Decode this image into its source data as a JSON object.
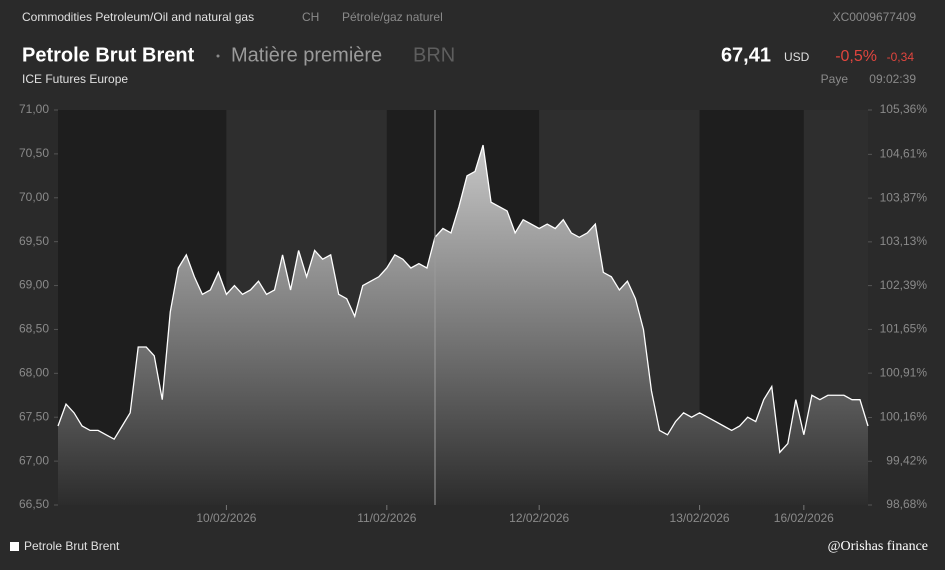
{
  "header": {
    "category": "Commodities Petroleum/Oil and natural gas",
    "country": "CH",
    "sector": "Pétrole/gaz naturel",
    "isin": "XC0009677409",
    "name": "Petrole Brut Brent",
    "kind": "Matière première",
    "symbol": "BRN",
    "price": "67,41",
    "currency": "USD",
    "change_pct": "-0,5%",
    "change_abs": "-0,34",
    "exchange": "ICE Futures Europe",
    "country_label": "Paye",
    "time": "09:02:39"
  },
  "footer": {
    "credit": "@Orishas finance"
  },
  "chart_data": {
    "type": "area",
    "categories": [
      null,
      null,
      null,
      null,
      null,
      null,
      null,
      null,
      null,
      null,
      null,
      null,
      null,
      null,
      null,
      null,
      null,
      null,
      null,
      null,
      null,
      "10/02/2026",
      null,
      null,
      null,
      null,
      null,
      null,
      null,
      null,
      null,
      null,
      null,
      null,
      null,
      null,
      null,
      null,
      null,
      null,
      null,
      "11/02/2026",
      null,
      null,
      null,
      null,
      null,
      null,
      null,
      null,
      null,
      null,
      null,
      null,
      null,
      null,
      null,
      null,
      null,
      null,
      "12/02/2026",
      null,
      null,
      null,
      null,
      null,
      null,
      null,
      null,
      null,
      null,
      null,
      null,
      null,
      null,
      null,
      null,
      null,
      null,
      null,
      "13/02/2026",
      null,
      null,
      null,
      null,
      null,
      null,
      null,
      null,
      null,
      null,
      null,
      null,
      "16/02/2026",
      null,
      null,
      null,
      null,
      null,
      null,
      null,
      null
    ],
    "series": [
      {
        "name": "Petrole Brut Brent",
        "color": "#ffffff",
        "values": [
          67.4,
          67.65,
          67.55,
          67.4,
          67.35,
          67.35,
          67.3,
          67.25,
          67.4,
          67.55,
          68.3,
          68.3,
          68.2,
          67.7,
          68.7,
          69.2,
          69.35,
          69.1,
          68.9,
          68.95,
          69.15,
          68.9,
          69.0,
          68.9,
          68.95,
          69.05,
          68.9,
          68.95,
          69.35,
          68.95,
          69.4,
          69.1,
          69.4,
          69.3,
          69.35,
          68.9,
          68.85,
          68.65,
          69.0,
          69.05,
          69.1,
          69.2,
          69.35,
          69.3,
          69.2,
          69.25,
          69.2,
          69.55,
          69.65,
          69.6,
          69.9,
          70.25,
          70.3,
          70.6,
          69.95,
          69.9,
          69.85,
          69.6,
          69.75,
          69.7,
          69.65,
          69.7,
          69.65,
          69.75,
          69.6,
          69.55,
          69.6,
          69.7,
          69.15,
          69.1,
          68.95,
          69.05,
          68.85,
          68.5,
          67.8,
          67.35,
          67.3,
          67.45,
          67.55,
          67.5,
          67.55,
          67.5,
          67.45,
          67.4,
          67.35,
          67.4,
          67.5,
          67.45,
          67.7,
          67.85,
          67.1,
          67.2,
          67.7,
          67.3,
          67.75,
          67.7,
          67.75,
          67.75,
          67.75,
          67.7,
          67.7,
          67.4
        ]
      }
    ],
    "ylim": [
      66.5,
      71.0
    ],
    "yticks": [
      {
        "value": 66.5,
        "label": "66,50"
      },
      {
        "value": 67.0,
        "label": "67,00"
      },
      {
        "value": 67.5,
        "label": "67,50"
      },
      {
        "value": 68.0,
        "label": "68,00"
      },
      {
        "value": 68.5,
        "label": "68,50"
      },
      {
        "value": 69.0,
        "label": "69,00"
      },
      {
        "value": 69.5,
        "label": "69,50"
      },
      {
        "value": 70.0,
        "label": "70,00"
      },
      {
        "value": 70.5,
        "label": "70,50"
      },
      {
        "value": 71.0,
        "label": "71,00"
      }
    ],
    "y2lim": [
      98.68,
      105.36
    ],
    "y2ticks": [
      {
        "value": 98.68,
        "label": "98,68%"
      },
      {
        "value": 99.42,
        "label": "99,42%"
      },
      {
        "value": 100.16,
        "label": "100,16%"
      },
      {
        "value": 100.91,
        "label": "100,91%"
      },
      {
        "value": 101.65,
        "label": "101,65%"
      },
      {
        "value": 102.39,
        "label": "102,39%"
      },
      {
        "value": 103.13,
        "label": "103,13%"
      },
      {
        "value": 103.87,
        "label": "103,87%"
      },
      {
        "value": 104.61,
        "label": "104,61%"
      },
      {
        "value": 105.36,
        "label": "105,36%"
      }
    ]
  }
}
